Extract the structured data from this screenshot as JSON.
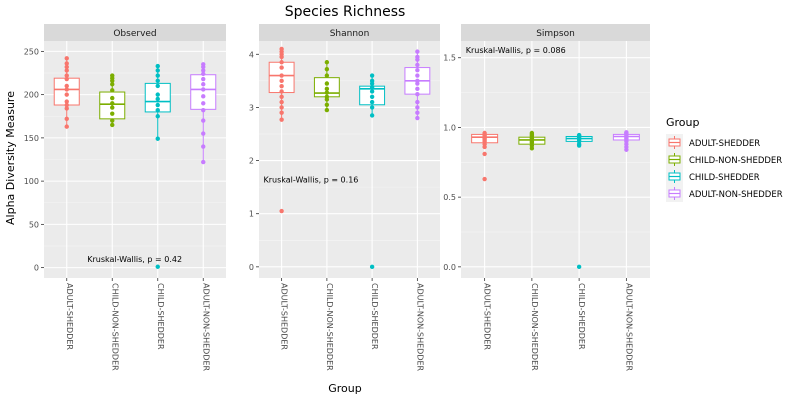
{
  "chart_data": {
    "type": "box",
    "title": "Species Richness",
    "xlabel": "Group",
    "ylabel": "Alpha Diversity Measure",
    "categories": [
      "ADULT-SHEDDER",
      "CHILD-NON-SHEDDER",
      "CHILD-SHEDDER",
      "ADULT-NON-SHEDDER"
    ],
    "legend": {
      "title": "Group",
      "position": "right",
      "entries": [
        "ADULT-SHEDDER",
        "CHILD-NON-SHEDDER",
        "CHILD-SHEDDER",
        "ADULT-NON-SHEDDER"
      ],
      "colors": [
        "#F8766D",
        "#7CAE00",
        "#00BFC4",
        "#C77CFF"
      ]
    },
    "panels": [
      {
        "name": "Observed",
        "ylim": [
          -12,
          262
        ],
        "yticks": [
          0,
          50,
          100,
          150,
          200,
          250
        ],
        "annotation": {
          "text": "Kruskal-Wallis, p = 0.42",
          "x": 1.45,
          "y": 4
        },
        "boxes": [
          {
            "group": "ADULT-SHEDDER",
            "q1": 188,
            "median": 206,
            "q3": 219,
            "whisker_low": 163,
            "whisker_high": 242,
            "points": [
              242,
              236,
              232,
              228,
              222,
              218,
              210,
              206,
              200,
              192,
              188,
              184,
              172,
              163
            ]
          },
          {
            "group": "CHILD-NON-SHEDDER",
            "q1": 172,
            "median": 189,
            "q3": 203,
            "whisker_low": 165,
            "whisker_high": 222,
            "points": [
              222,
              219,
              216,
              212,
              205,
              196,
              190,
              185,
              178,
              170,
              165
            ]
          },
          {
            "group": "CHILD-SHEDDER",
            "q1": 180,
            "median": 192,
            "q3": 213,
            "whisker_low": 149,
            "whisker_high": 233,
            "points": [
              233,
              228,
              222,
              216,
              210,
              200,
              195,
              188,
              182,
              175,
              149,
              1
            ]
          },
          {
            "group": "ADULT-NON-SHEDDER",
            "q1": 183,
            "median": 206,
            "q3": 223,
            "whisker_low": 122,
            "whisker_high": 235,
            "points": [
              235,
              232,
              228,
              224,
              218,
              212,
              206,
              198,
              190,
              182,
              170,
              155,
              140,
              122
            ]
          }
        ]
      },
      {
        "name": "Shannon",
        "ylim": [
          -0.21,
          4.25
        ],
        "yticks": [
          0,
          1,
          2,
          3,
          4
        ],
        "annotation": {
          "text": "Kruskal-Wallis, p = 0.16",
          "x": 0.6,
          "y": 1.55
        },
        "boxes": [
          {
            "group": "ADULT-SHEDDER",
            "q1": 3.28,
            "median": 3.6,
            "q3": 3.85,
            "whisker_low": 2.77,
            "whisker_high": 4.1,
            "points": [
              4.1,
              4.05,
              4.0,
              3.95,
              3.85,
              3.75,
              3.6,
              3.5,
              3.4,
              3.3,
              3.2,
              3.1,
              3.0,
              2.9,
              2.77,
              1.05
            ]
          },
          {
            "group": "CHILD-NON-SHEDDER",
            "q1": 3.2,
            "median": 3.27,
            "q3": 3.56,
            "whisker_low": 2.95,
            "whisker_high": 3.85,
            "points": [
              3.85,
              3.72,
              3.6,
              3.45,
              3.35,
              3.28,
              3.2,
              3.15,
              3.05,
              2.95
            ]
          },
          {
            "group": "CHILD-SHEDDER",
            "q1": 3.05,
            "median": 3.35,
            "q3": 3.4,
            "whisker_low": 2.85,
            "whisker_high": 3.6,
            "points": [
              3.6,
              3.5,
              3.45,
              3.38,
              3.3,
              3.2,
              3.1,
              3.0,
              2.85,
              0.0
            ]
          },
          {
            "group": "ADULT-NON-SHEDDER",
            "q1": 3.25,
            "median": 3.5,
            "q3": 3.75,
            "whisker_low": 2.8,
            "whisker_high": 4.05,
            "points": [
              4.05,
              3.95,
              3.9,
              3.8,
              3.7,
              3.6,
              3.5,
              3.45,
              3.35,
              3.25,
              3.1,
              3.0,
              2.9,
              2.8
            ]
          }
        ]
      },
      {
        "name": "Simpson",
        "ylim": [
          -0.08,
          1.62
        ],
        "yticks": [
          0.0,
          0.5,
          1.0,
          1.5
        ],
        "annotation": {
          "text": "Kruskal-Wallis, p = 0.086",
          "x": 0.6,
          "y": 1.52
        },
        "boxes": [
          {
            "group": "ADULT-SHEDDER",
            "q1": 0.89,
            "median": 0.93,
            "q3": 0.95,
            "whisker_low": 0.86,
            "whisker_high": 0.96,
            "points": [
              0.96,
              0.95,
              0.94,
              0.93,
              0.92,
              0.91,
              0.9,
              0.88,
              0.86,
              0.81,
              0.63
            ]
          },
          {
            "group": "CHILD-NON-SHEDDER",
            "q1": 0.88,
            "median": 0.91,
            "q3": 0.93,
            "whisker_low": 0.85,
            "whisker_high": 0.96,
            "points": [
              0.96,
              0.95,
              0.94,
              0.93,
              0.92,
              0.91,
              0.9,
              0.89,
              0.87,
              0.85
            ]
          },
          {
            "group": "CHILD-SHEDDER",
            "q1": 0.9,
            "median": 0.92,
            "q3": 0.935,
            "whisker_low": 0.87,
            "whisker_high": 0.945,
            "points": [
              0.945,
              0.94,
              0.93,
              0.92,
              0.91,
              0.9,
              0.88,
              0.87,
              0.0
            ]
          },
          {
            "group": "ADULT-NON-SHEDDER",
            "q1": 0.91,
            "median": 0.935,
            "q3": 0.95,
            "whisker_low": 0.84,
            "whisker_high": 0.965,
            "points": [
              0.965,
              0.96,
              0.955,
              0.95,
              0.94,
              0.93,
              0.92,
              0.91,
              0.9,
              0.88,
              0.86,
              0.84
            ]
          }
        ]
      }
    ]
  }
}
